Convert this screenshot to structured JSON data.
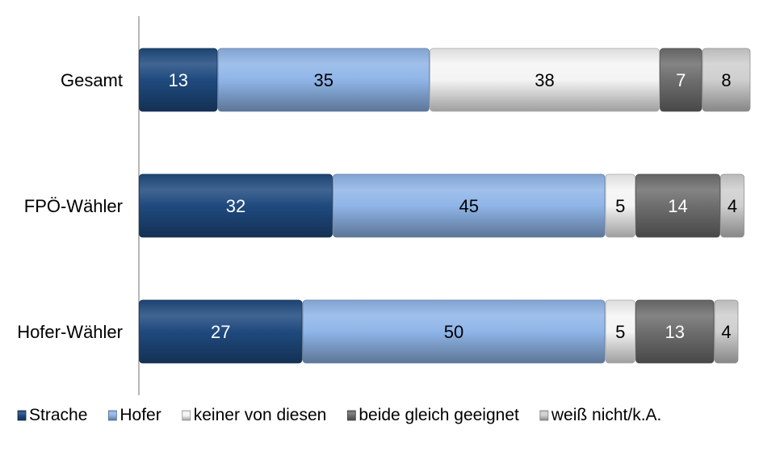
{
  "chart_data": {
    "type": "bar",
    "orientation": "horizontal",
    "stacked": true,
    "categories": [
      "Gesamt",
      "FPÖ-Wähler",
      "Hofer-Wähler"
    ],
    "series": [
      {
        "name": "Strache",
        "values": [
          13,
          32,
          27
        ],
        "color": "#1f4a7f",
        "label_color": "#ffffff"
      },
      {
        "name": "Hofer",
        "values": [
          35,
          45,
          50
        ],
        "color": "#8fb5e8",
        "label_color": "#000000"
      },
      {
        "name": "keiner von diesen",
        "values": [
          38,
          5,
          5
        ],
        "color": "#f4f4f4",
        "label_color": "#000000"
      },
      {
        "name": "beide gleich geeignet",
        "values": [
          7,
          14,
          13
        ],
        "color": "#6e6e6e",
        "label_color": "#ffffff"
      },
      {
        "name": "weiß nicht/k.A.",
        "values": [
          8,
          4,
          4
        ],
        "color": "#cfcfcf",
        "label_color": "#000000"
      }
    ],
    "xlim": [
      0,
      100
    ],
    "grid": false,
    "legend_position": "bottom"
  }
}
